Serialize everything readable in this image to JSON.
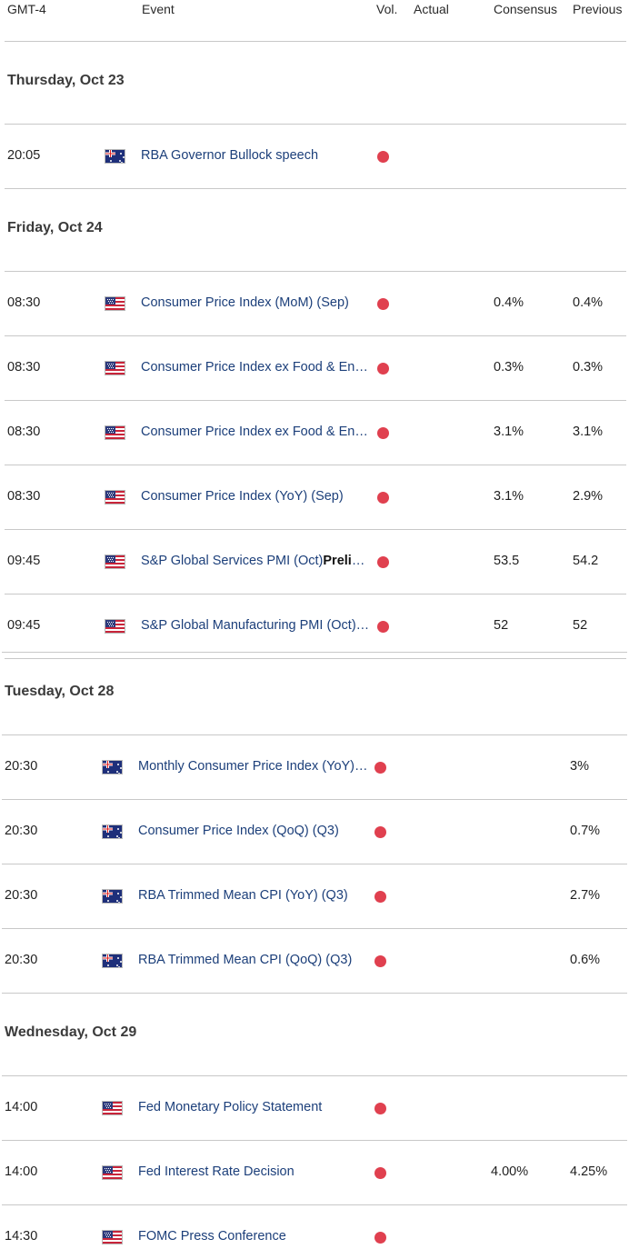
{
  "header": {
    "tz": "GMT-4",
    "event": "Event",
    "vol": "Vol.",
    "actual": "Actual",
    "consensus": "Consensus",
    "previous": "Previous"
  },
  "days": [
    {
      "label": "Thursday, Oct 23",
      "events": [
        {
          "time": "20:05",
          "flag": "au",
          "event": "RBA Governor Bullock speech",
          "bold": "",
          "consensus": "",
          "previous": ""
        }
      ]
    },
    {
      "label": "Friday, Oct 24",
      "events": [
        {
          "time": "08:30",
          "flag": "us",
          "event": "Consumer Price Index (MoM) (Sep)",
          "bold": "",
          "consensus": "0.4%",
          "previous": "0.4%"
        },
        {
          "time": "08:30",
          "flag": "us",
          "event": "Consumer Price Index ex Food & Energy (MoM) (Sep)",
          "bold": "",
          "consensus": "0.3%",
          "previous": "0.3%"
        },
        {
          "time": "08:30",
          "flag": "us",
          "event": "Consumer Price Index ex Food & Energy (YoY) (Sep)",
          "bold": "",
          "consensus": "3.1%",
          "previous": "3.1%"
        },
        {
          "time": "08:30",
          "flag": "us",
          "event": "Consumer Price Index (YoY) (Sep)",
          "bold": "",
          "consensus": "3.1%",
          "previous": "2.9%"
        },
        {
          "time": "09:45",
          "flag": "us",
          "event": "S&P Global Services PMI (Oct)",
          "bold": "Preliminary",
          "consensus": "53.5",
          "previous": "54.2"
        },
        {
          "time": "09:45",
          "flag": "us",
          "event": "S&P Global Manufacturing PMI (Oct) Preliminary",
          "bold": "",
          "consensus": "52",
          "previous": "52"
        }
      ]
    },
    {
      "label": "Tuesday, Oct 28",
      "events": [
        {
          "time": "20:30",
          "flag": "au",
          "event": "Monthly Consumer Price Index (YoY) (Sep)",
          "bold": "",
          "consensus": "",
          "previous": "3%"
        },
        {
          "time": "20:30",
          "flag": "au",
          "event": "Consumer Price Index (QoQ) (Q3)",
          "bold": "",
          "consensus": "",
          "previous": "0.7%"
        },
        {
          "time": "20:30",
          "flag": "au",
          "event": "RBA Trimmed Mean CPI (YoY) (Q3)",
          "bold": "",
          "consensus": "",
          "previous": "2.7%"
        },
        {
          "time": "20:30",
          "flag": "au",
          "event": "RBA Trimmed Mean CPI (QoQ) (Q3)",
          "bold": "",
          "consensus": "",
          "previous": "0.6%"
        }
      ]
    },
    {
      "label": "Wednesday, Oct 29",
      "events": [
        {
          "time": "14:00",
          "flag": "us",
          "event": "Fed Monetary Policy Statement",
          "bold": "",
          "consensus": "",
          "previous": ""
        },
        {
          "time": "14:00",
          "flag": "us",
          "event": "Fed Interest Rate Decision",
          "bold": "",
          "consensus": "4.00%",
          "previous": "4.25%"
        },
        {
          "time": "14:30",
          "flag": "us",
          "event": "FOMC Press Conference",
          "bold": "",
          "consensus": "",
          "previous": ""
        }
      ]
    }
  ],
  "colors": {
    "volatility_high": "#e0404f",
    "event_text": "#1c3f7a"
  },
  "icons": {
    "us": "us-flag-icon",
    "au": "au-flag-icon",
    "volatility": "high-volatility-dot-icon"
  }
}
